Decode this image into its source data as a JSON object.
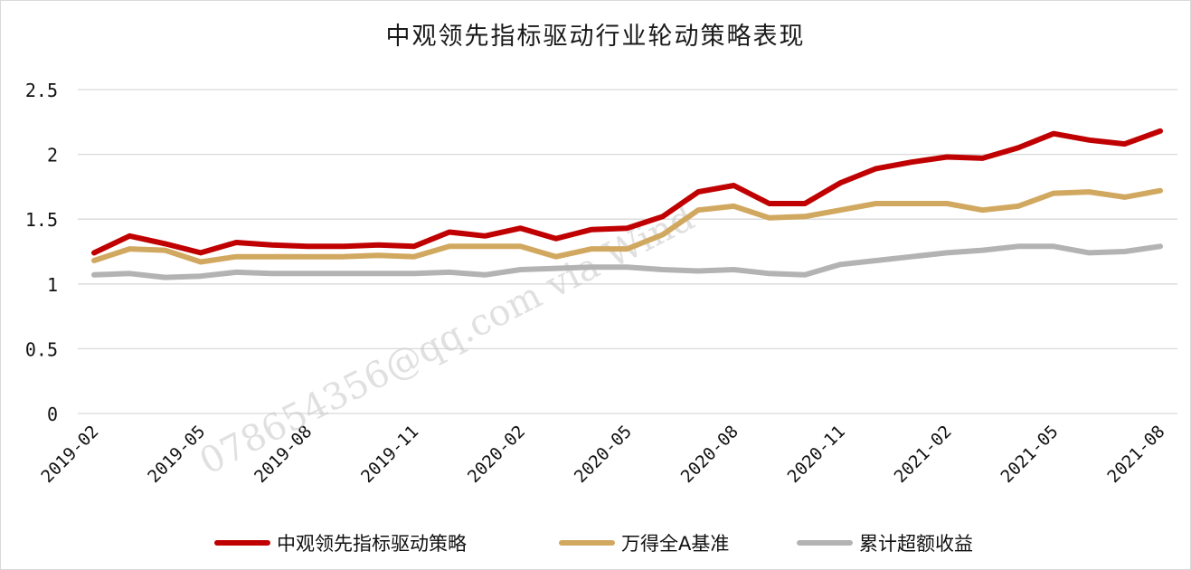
{
  "chart_data": {
    "type": "line",
    "title": "中观领先指标驱动行业轮动策略表现",
    "x": [
      "2019-02",
      "2019-03",
      "2019-04",
      "2019-05",
      "2019-06",
      "2019-07",
      "2019-08",
      "2019-09",
      "2019-10",
      "2019-11",
      "2019-12",
      "2020-01",
      "2020-02",
      "2020-03",
      "2020-04",
      "2020-05",
      "2020-06",
      "2020-07",
      "2020-08",
      "2020-09",
      "2020-10",
      "2020-11",
      "2020-12",
      "2021-01",
      "2021-02",
      "2021-03",
      "2021-04",
      "2021-05",
      "2021-06",
      "2021-07",
      "2021-08"
    ],
    "tick_labels": [
      "2019-02",
      "2019-05",
      "2019-08",
      "2019-11",
      "2020-02",
      "2020-05",
      "2020-08",
      "2020-11",
      "2021-02",
      "2021-05",
      "2021-08"
    ],
    "y_ticks": [
      "0",
      "0.5",
      "1",
      "1.5",
      "2",
      "2.5"
    ],
    "ylim": [
      0,
      2.5
    ],
    "grid": true,
    "legend_position": "bottom",
    "series": [
      {
        "name": "中观领先指标驱动策略",
        "color": "#c00000",
        "values": [
          1.24,
          1.37,
          1.31,
          1.24,
          1.32,
          1.3,
          1.29,
          1.29,
          1.3,
          1.29,
          1.4,
          1.37,
          1.43,
          1.35,
          1.42,
          1.43,
          1.52,
          1.71,
          1.76,
          1.62,
          1.62,
          1.78,
          1.89,
          1.94,
          1.98,
          1.97,
          2.05,
          2.16,
          2.11,
          2.08,
          2.18
        ]
      },
      {
        "name": "万得全A基准",
        "color": "#d1a85f",
        "values": [
          1.18,
          1.27,
          1.26,
          1.17,
          1.21,
          1.21,
          1.21,
          1.21,
          1.22,
          1.21,
          1.29,
          1.29,
          1.29,
          1.21,
          1.27,
          1.27,
          1.38,
          1.57,
          1.6,
          1.51,
          1.52,
          1.57,
          1.62,
          1.62,
          1.62,
          1.57,
          1.6,
          1.7,
          1.71,
          1.67,
          1.72
        ]
      },
      {
        "name": "累计超额收益",
        "color": "#b3b3b3",
        "values": [
          1.07,
          1.08,
          1.05,
          1.06,
          1.09,
          1.08,
          1.08,
          1.08,
          1.08,
          1.08,
          1.09,
          1.07,
          1.11,
          1.12,
          1.13,
          1.13,
          1.11,
          1.1,
          1.11,
          1.08,
          1.07,
          1.15,
          1.18,
          1.21,
          1.24,
          1.26,
          1.29,
          1.29,
          1.24,
          1.25,
          1.29
        ]
      }
    ]
  },
  "watermark": "078654356@qq.com via Wind"
}
